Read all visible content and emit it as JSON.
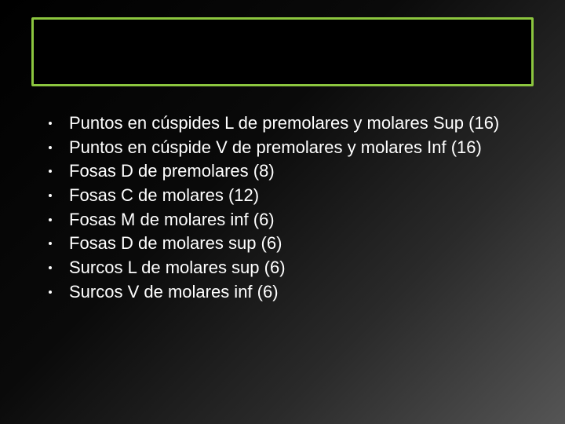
{
  "slide": {
    "title_bar": {
      "border_color": "#8cc63f",
      "fill_color": "#000000"
    },
    "background": {
      "gradient_start": "#000000",
      "gradient_end": "#555555"
    },
    "text_color": "#ffffff",
    "font_size": 22,
    "bullets": [
      "Puntos en cúspides L de premolares y molares Sup (16)",
      "Puntos en cúspide V de premolares y molares Inf (16)",
      "Fosas D de premolares (8)",
      "Fosas C de molares (12)",
      "Fosas M de molares inf (6)",
      "Fosas D de molares sup (6)",
      "Surcos L de molares sup (6)",
      "Surcos V de molares inf (6)"
    ]
  }
}
